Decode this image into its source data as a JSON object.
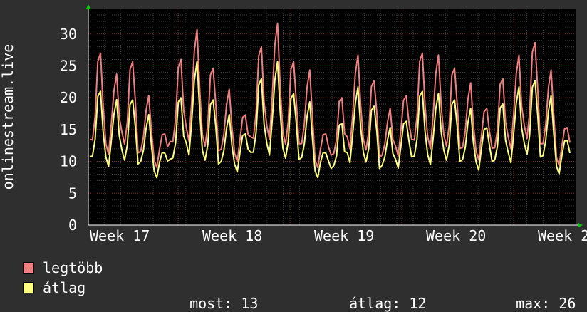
{
  "chart_data": {
    "type": "line",
    "ylabel": "onlinestream.live",
    "ylim": [
      0,
      34
    ],
    "yticks": [
      0,
      5,
      10,
      15,
      20,
      25,
      30
    ],
    "xticks": [
      "Week 17",
      "Week 18",
      "Week 19",
      "Week 20",
      "Week 2"
    ],
    "grid": true,
    "samples_per_day": 6,
    "days": 30,
    "series": [
      {
        "name": "legtöbb",
        "color": "#f08080",
        "daily_peak": [
          27,
          23,
          26,
          20,
          15,
          26,
          30,
          25,
          21,
          18,
          28,
          31,
          26,
          24,
          15,
          20,
          26,
          23,
          18,
          21,
          27,
          26,
          25,
          22,
          19,
          23,
          26,
          29,
          24,
          16
        ],
        "values": []
      },
      {
        "name": "átlag",
        "color": "#ffff80",
        "daily_peak": [
          21,
          19,
          20,
          17,
          12,
          20,
          25,
          20,
          17,
          15,
          23,
          25,
          21,
          19,
          12,
          16,
          21,
          19,
          15,
          17,
          21,
          20,
          20,
          18,
          16,
          19,
          21,
          23,
          20,
          14
        ],
        "values": []
      }
    ]
  },
  "legend": [
    {
      "label": "legtöbb",
      "color": "#f08080"
    },
    {
      "label": "átlag",
      "color": "#ffff80"
    }
  ],
  "stats": {
    "now_label": "most:",
    "now_value": "13",
    "avg_label": "átlag:",
    "avg_value": "12",
    "max_label": "max:",
    "max_value": "26"
  }
}
